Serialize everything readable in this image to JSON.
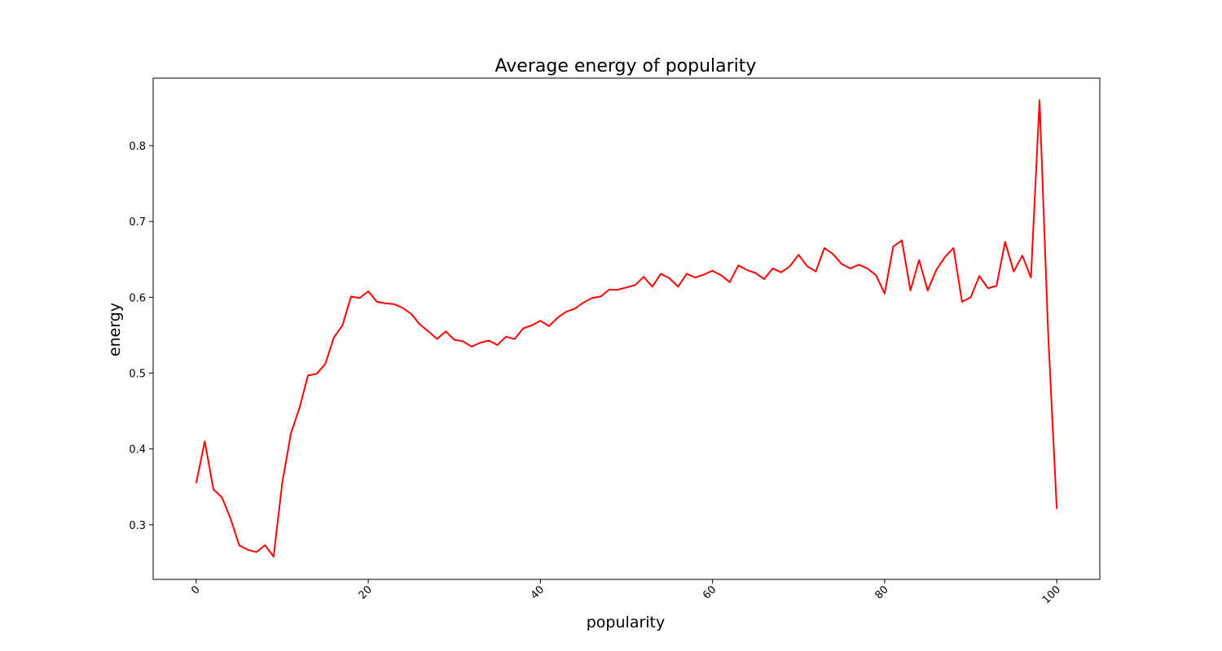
{
  "chart_data": {
    "type": "line",
    "title": "Average energy of popularity",
    "xlabel": "popularity",
    "ylabel": "energy",
    "xlim": [
      -5,
      105
    ],
    "ylim": [
      0.228,
      0.889
    ],
    "xticks": [
      0,
      20,
      40,
      60,
      80,
      100
    ],
    "yticks": [
      0.3,
      0.4,
      0.5,
      0.6,
      0.7,
      0.8
    ],
    "xtick_labels": [
      "0",
      "20",
      "40",
      "60",
      "80",
      "100"
    ],
    "ytick_labels": [
      "0.3",
      "0.4",
      "0.5",
      "0.6",
      "0.7",
      "0.8"
    ],
    "xtick_rotation": 45,
    "grid": false,
    "series": [
      {
        "color": "#ff0000",
        "x": [
          0,
          1,
          2,
          3,
          4,
          5,
          6,
          7,
          8,
          9,
          10,
          11,
          12,
          13,
          14,
          15,
          16,
          17,
          18,
          19,
          20,
          21,
          22,
          23,
          24,
          25,
          26,
          27,
          28,
          29,
          30,
          31,
          32,
          33,
          34,
          35,
          36,
          37,
          38,
          39,
          40,
          41,
          42,
          43,
          44,
          45,
          46,
          47,
          48,
          49,
          50,
          51,
          52,
          53,
          54,
          55,
          56,
          57,
          58,
          59,
          60,
          61,
          62,
          63,
          64,
          65,
          66,
          67,
          68,
          69,
          70,
          71,
          72,
          73,
          74,
          75,
          76,
          77,
          78,
          79,
          80,
          81,
          82,
          83,
          84,
          85,
          86,
          87,
          88,
          89,
          90,
          91,
          92,
          93,
          94,
          95,
          96,
          97,
          98,
          99,
          100
        ],
        "y": [
          0.355,
          0.41,
          0.347,
          0.336,
          0.308,
          0.273,
          0.267,
          0.264,
          0.273,
          0.258,
          0.355,
          0.42,
          0.454,
          0.497,
          0.499,
          0.512,
          0.547,
          0.563,
          0.601,
          0.599,
          0.608,
          0.594,
          0.592,
          0.591,
          0.586,
          0.578,
          0.564,
          0.555,
          0.545,
          0.555,
          0.544,
          0.542,
          0.535,
          0.54,
          0.543,
          0.537,
          0.548,
          0.545,
          0.559,
          0.563,
          0.569,
          0.562,
          0.573,
          0.581,
          0.585,
          0.593,
          0.599,
          0.601,
          0.61,
          0.61,
          0.613,
          0.616,
          0.627,
          0.614,
          0.631,
          0.625,
          0.614,
          0.631,
          0.626,
          0.63,
          0.635,
          0.629,
          0.62,
          0.642,
          0.636,
          0.632,
          0.624,
          0.638,
          0.633,
          0.641,
          0.656,
          0.641,
          0.634,
          0.665,
          0.657,
          0.644,
          0.638,
          0.643,
          0.638,
          0.629,
          0.605,
          0.667,
          0.675,
          0.609,
          0.649,
          0.609,
          0.636,
          0.653,
          0.665,
          0.594,
          0.6,
          0.628,
          0.612,
          0.615,
          0.673,
          0.634,
          0.655,
          0.626,
          0.86,
          0.552,
          0.321
        ]
      }
    ]
  }
}
